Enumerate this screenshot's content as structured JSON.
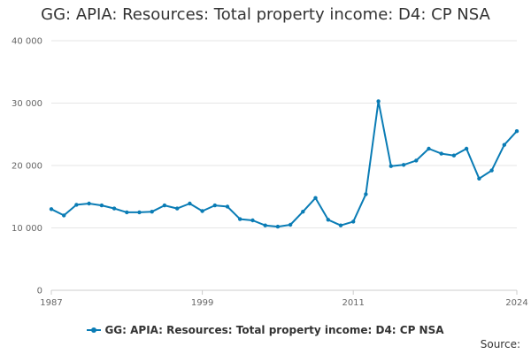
{
  "chart_data": {
    "type": "line",
    "title": "GG: APIA: Resources: Total property income: D4: CP NSA",
    "xlabel": "",
    "ylabel": "",
    "x": [
      1987,
      1988,
      1989,
      1990,
      1991,
      1992,
      1993,
      1994,
      1995,
      1996,
      1997,
      1998,
      1999,
      2000,
      2001,
      2002,
      2003,
      2004,
      2005,
      2006,
      2007,
      2008,
      2009,
      2010,
      2011,
      2012,
      2013,
      2014,
      2015,
      2016,
      2017,
      2018,
      2019,
      2020,
      2021,
      2022,
      2023,
      2024
    ],
    "series": [
      {
        "name": "GG: APIA: Resources: Total property income: D4: CP NSA",
        "values": [
          13000,
          12000,
          13700,
          13900,
          13600,
          13100,
          12500,
          12500,
          12600,
          13600,
          13100,
          13900,
          12700,
          13600,
          13400,
          11400,
          11200,
          10400,
          10200,
          10500,
          12600,
          14800,
          11300,
          10400,
          11000,
          15400,
          30300,
          19900,
          20100,
          20800,
          22700,
          21900,
          21600,
          22700,
          17900,
          19200,
          23300,
          25500
        ]
      }
    ],
    "xticks": [
      "1987",
      "1999",
      "2011",
      "2024"
    ],
    "yticks": [
      "0",
      "10 000",
      "20 000",
      "30 000",
      "40 000"
    ],
    "xlim": [
      1987,
      2024
    ],
    "ylim": [
      0,
      40000
    ],
    "grid": "horizontal",
    "legend_position": "bottom",
    "line_color": "#0a7cb5"
  },
  "source_label": "Source:"
}
